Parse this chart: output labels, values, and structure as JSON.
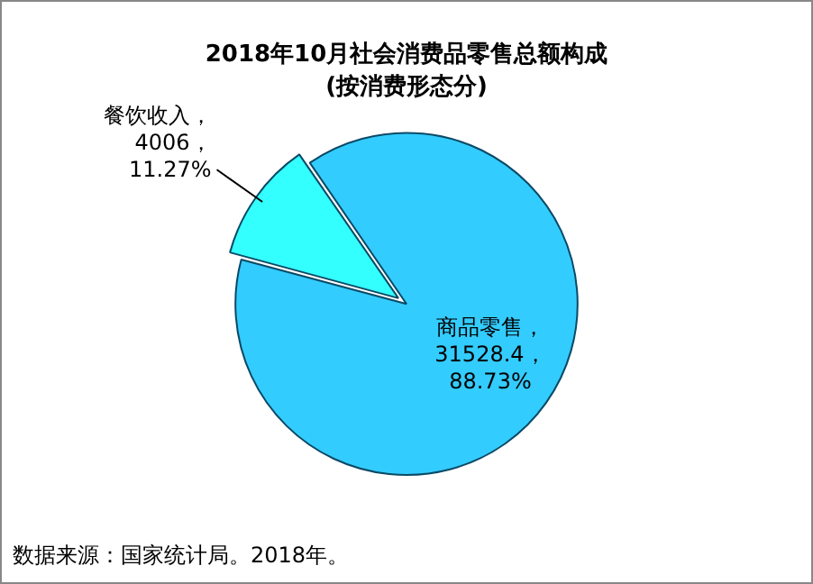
{
  "chart_data": {
    "type": "pie",
    "title": "2018年10月社会消费品零售总额构成",
    "subtitle": "(按消费形态分)",
    "categories": [
      "餐饮收入",
      "商品零售"
    ],
    "values": [
      4006,
      31528.4
    ],
    "colors": [
      "#33ffff",
      "#33ccff"
    ],
    "value_labels": [
      "，4006，11.27%",
      "，31528.4，88.73%"
    ],
    "legend": false,
    "annotations": [
      "数据来源：国家统计局。2018年。"
    ]
  }
}
